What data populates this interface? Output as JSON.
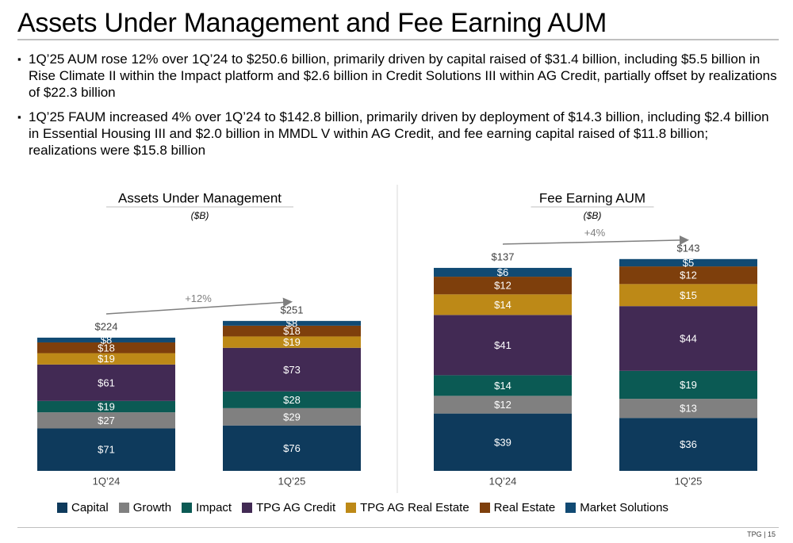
{
  "page": {
    "title": "Assets Under Management and Fee Earning AUM",
    "bullets": [
      "1Q’25 AUM rose 12% over 1Q’24 to $250.6 billion, primarily driven by capital raised of $31.4 billion, including $5.5 billion in Rise Climate II within the Impact platform and $2.6 billion in Credit Solutions III within AG Credit, partially offset by realizations of $22.3 billion",
      "1Q’25 FAUM increased 4% over 1Q’24 to $142.8 billion, primarily driven by deployment of $14.3 billion, including $2.4 billion in Essential Housing III and $2.0 billion in MMDL V within AG Credit, and fee earning capital raised of $11.8 billion; realizations were $15.8 billion"
    ],
    "bullet_mark": "▪",
    "footer": "TPG | 15"
  },
  "legend": [
    {
      "name": "Capital",
      "color": "#0e3a5c"
    },
    {
      "name": "Growth",
      "color": "#808080"
    },
    {
      "name": "Impact",
      "color": "#0b5a54"
    },
    {
      "name": "TPG AG Credit",
      "color": "#422a54"
    },
    {
      "name": "TPG AG Real Estate",
      "color": "#bd8917"
    },
    {
      "name": "Real Estate",
      "color": "#7e3f0c"
    },
    {
      "name": "Market Solutions",
      "color": "#114a73"
    }
  ],
  "chart_data": [
    {
      "type": "bar",
      "stacked": true,
      "title": "Assets Under Management",
      "subtitle": "($B)",
      "categories": [
        "1Q’24",
        "1Q’25"
      ],
      "series": [
        {
          "name": "Capital",
          "values": [
            71,
            76
          ],
          "labels": [
            "$71",
            "$76"
          ]
        },
        {
          "name": "Growth",
          "values": [
            27,
            29
          ],
          "labels": [
            "$27",
            "$29"
          ]
        },
        {
          "name": "Impact",
          "values": [
            19,
            28
          ],
          "labels": [
            "$19",
            "$28"
          ]
        },
        {
          "name": "TPG AG Credit",
          "values": [
            61,
            73
          ],
          "labels": [
            "$61",
            "$73"
          ]
        },
        {
          "name": "TPG AG Real Estate",
          "values": [
            19,
            19
          ],
          "labels": [
            "$19",
            "$19"
          ]
        },
        {
          "name": "Real Estate",
          "values": [
            18,
            18
          ],
          "labels": [
            "$18",
            "$18"
          ]
        },
        {
          "name": "Market Solutions",
          "values": [
            8,
            8
          ],
          "labels": [
            "$8",
            "$8"
          ]
        }
      ],
      "totals": [
        "$224",
        "$251"
      ],
      "total_values": [
        224,
        251
      ],
      "growth": "+12%"
    },
    {
      "type": "bar",
      "stacked": true,
      "title": "Fee Earning AUM",
      "subtitle": "($B)",
      "categories": [
        "1Q’24",
        "1Q’25"
      ],
      "series": [
        {
          "name": "Capital",
          "values": [
            39,
            36
          ],
          "labels": [
            "$39",
            "$36"
          ]
        },
        {
          "name": "Growth",
          "values": [
            12,
            13
          ],
          "labels": [
            "$12",
            "$13"
          ]
        },
        {
          "name": "Impact",
          "values": [
            14,
            19
          ],
          "labels": [
            "$14",
            "$19"
          ]
        },
        {
          "name": "TPG AG Credit",
          "values": [
            41,
            44
          ],
          "labels": [
            "$41",
            "$44"
          ]
        },
        {
          "name": "TPG AG Real Estate",
          "values": [
            14,
            15
          ],
          "labels": [
            "$14",
            "$15"
          ]
        },
        {
          "name": "Real Estate",
          "values": [
            12,
            12
          ],
          "labels": [
            "$12",
            "$12"
          ]
        },
        {
          "name": "Market Solutions",
          "values": [
            6,
            5
          ],
          "labels": [
            "$6",
            "$5"
          ]
        }
      ],
      "totals": [
        "$137",
        "$143"
      ],
      "total_values": [
        137,
        143
      ],
      "growth": "+4%"
    }
  ]
}
